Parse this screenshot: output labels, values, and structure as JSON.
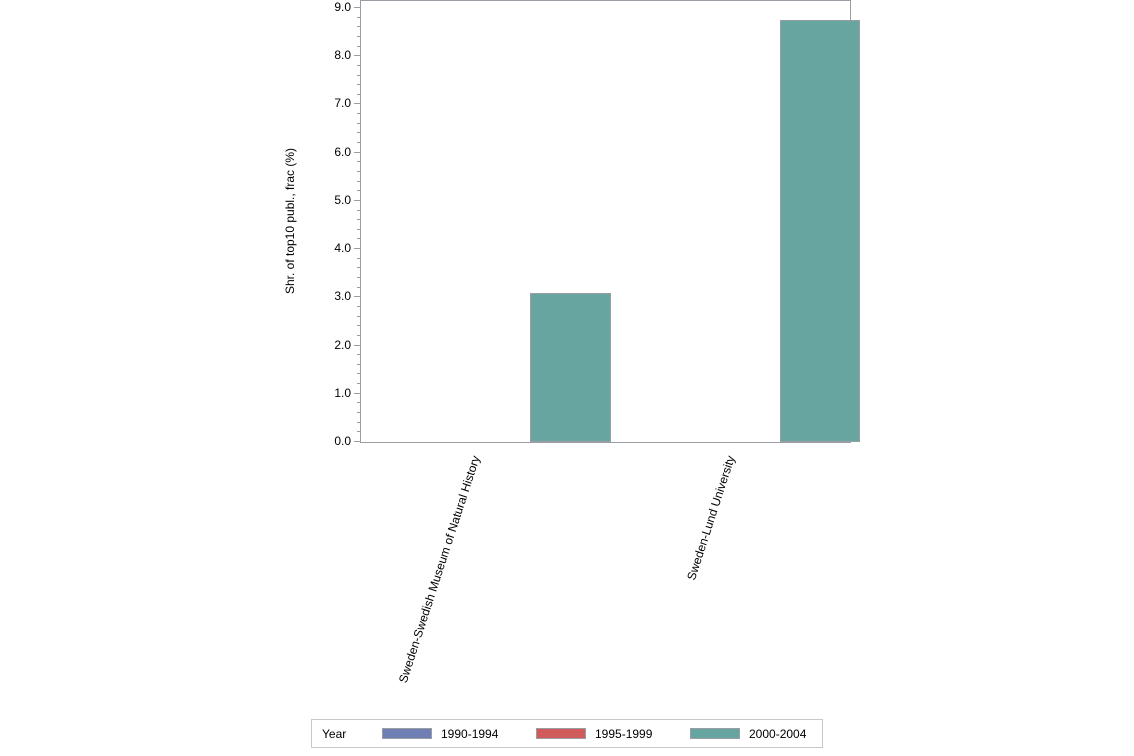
{
  "chart_data": {
    "type": "bar",
    "title": "",
    "xlabel": "",
    "ylabel": "Shr. of top10 publ., frac (%)",
    "ylim": [
      0,
      9
    ],
    "yticks": [
      "0.0",
      "1.0",
      "2.0",
      "3.0",
      "4.0",
      "5.0",
      "6.0",
      "7.0",
      "8.0",
      "9.0"
    ],
    "categories": [
      "Sweden-Swedish Museum of Natural History",
      "Sweden-Lund University"
    ],
    "series": [
      {
        "name": "1990-1994",
        "color": "#6f7eb3",
        "values": [
          null,
          null
        ]
      },
      {
        "name": "1995-1999",
        "color": "#d05b5b",
        "values": [
          null,
          null
        ]
      },
      {
        "name": "2000-2004",
        "color": "#66a5a0",
        "values": [
          3.07,
          8.73
        ]
      }
    ],
    "legend": {
      "title": "Year",
      "position": "bottom"
    },
    "grid": false
  },
  "legend": {
    "title": "Year",
    "items": [
      {
        "label": "1990-1994",
        "color": "#6f7eb3"
      },
      {
        "label": "1995-1999",
        "color": "#d05b5b"
      },
      {
        "label": "2000-2004",
        "color": "#66a5a0"
      }
    ]
  }
}
